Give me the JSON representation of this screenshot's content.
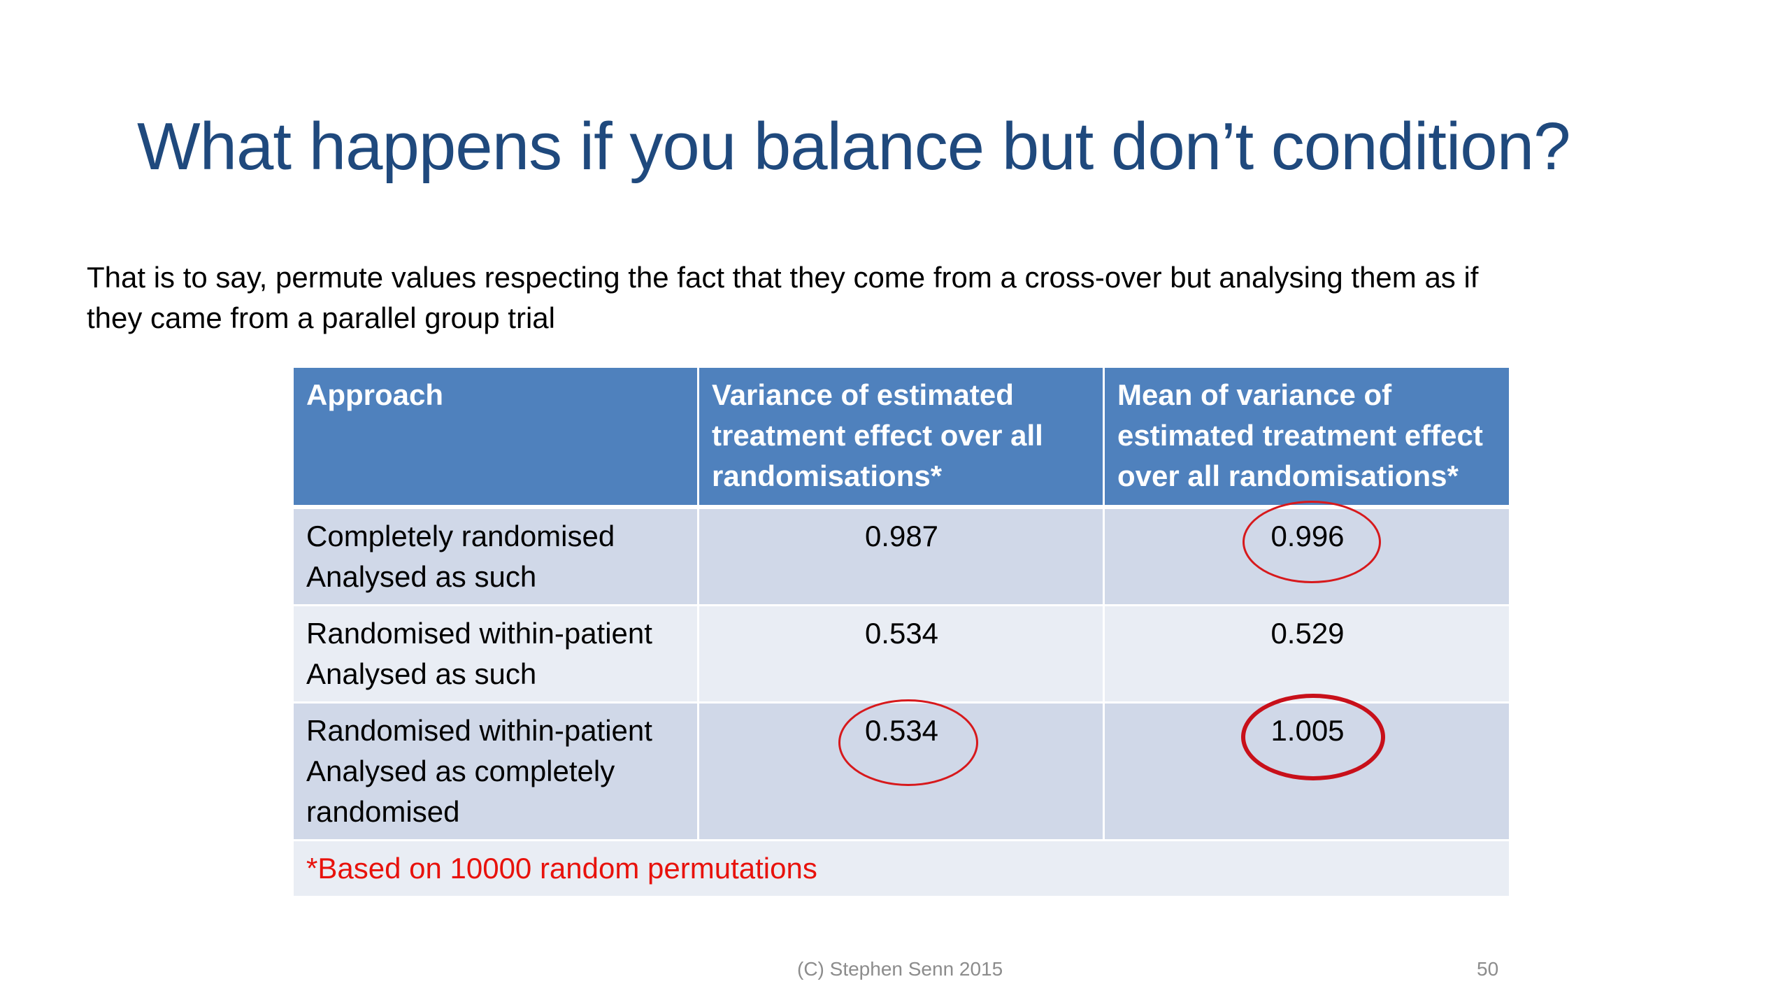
{
  "slide": {
    "title": "What happens if you balance but don’t condition?",
    "intro_line1": "That is to say, permute values respecting the fact that they come from a cross-over but analysing them as if",
    "intro_line2": "they came from a parallel group trial",
    "table": {
      "headers": [
        "Approach",
        "Variance of estimated treatment effect over all randomisations*",
        "Mean of variance of estimated treatment effect over all randomisations*"
      ],
      "rows": [
        {
          "approach_line1": "Completely randomised",
          "approach_line2": "Analysed as such",
          "approach_line3": "",
          "variance": "0.987",
          "mean_variance": "0.996"
        },
        {
          "approach_line1": "Randomised within-patient",
          "approach_line2": "Analysed as such",
          "approach_line3": "",
          "variance": "0.534",
          "mean_variance": "0.529"
        },
        {
          "approach_line1": "Randomised within-patient",
          "approach_line2": "Analysed as completely",
          "approach_line3": "randomised",
          "variance": "0.534",
          "mean_variance": "1.005"
        }
      ],
      "footnote": "*Based on 10000 random permutations"
    },
    "footer_credit": "(C) Stephen Senn 2015",
    "page_number": "50",
    "colors": {
      "title": "#1F497D",
      "header_bg": "#4F81BD",
      "row_dark": "#D0D8E8",
      "row_light": "#E9EDF4",
      "highlight_circle": "#D7191C",
      "footnote": "#E8120C"
    }
  }
}
